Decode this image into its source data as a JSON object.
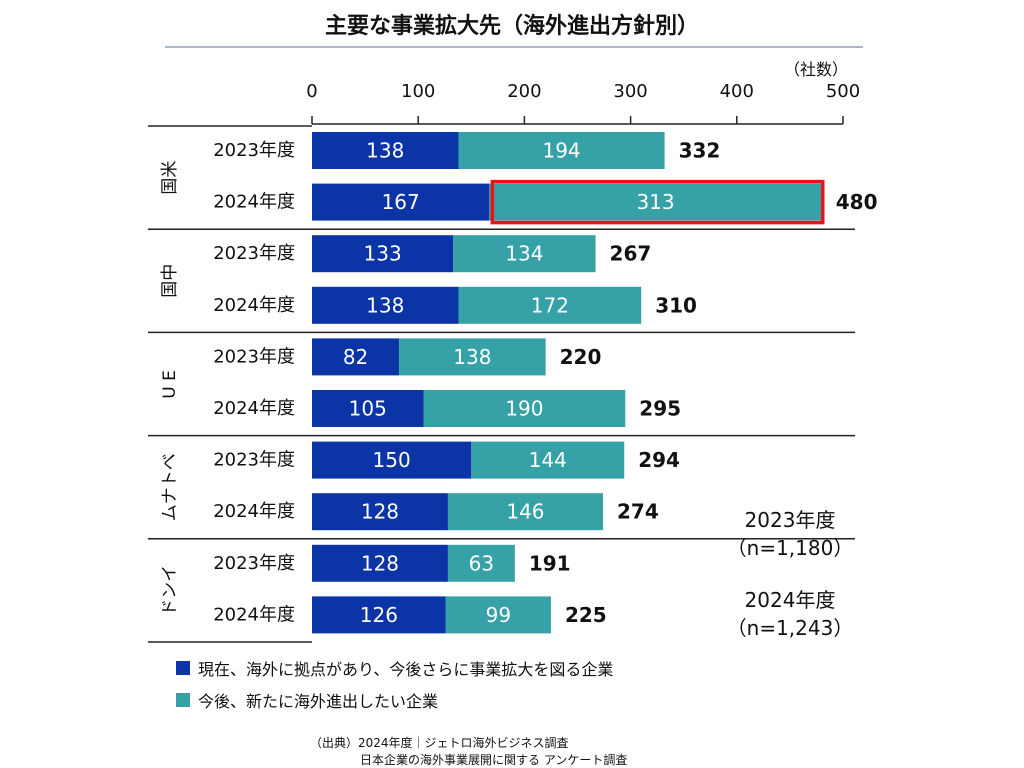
{
  "chart_data": {
    "type": "bar",
    "orientation": "horizontal",
    "stacked": true,
    "title": "主要な事業拡大先（海外進出方針別）",
    "unit_label": "（社数）",
    "xlim": [
      0,
      500
    ],
    "xticks": [
      0,
      100,
      200,
      300,
      400,
      500
    ],
    "groups": [
      {
        "name": "米国",
        "rows": [
          {
            "year": "2023年度",
            "a": 138,
            "b": 194,
            "total": 332
          },
          {
            "year": "2024年度",
            "a": 167,
            "b": 313,
            "total": 480,
            "highlight_b": true
          }
        ]
      },
      {
        "name": "中国",
        "rows": [
          {
            "year": "2023年度",
            "a": 133,
            "b": 134,
            "total": 267
          },
          {
            "year": "2024年度",
            "a": 138,
            "b": 172,
            "total": 310
          }
        ]
      },
      {
        "name": "EU",
        "rows": [
          {
            "year": "2023年度",
            "a": 82,
            "b": 138,
            "total": 220
          },
          {
            "year": "2024年度",
            "a": 105,
            "b": 190,
            "total": 295
          }
        ]
      },
      {
        "name": "ベトナム",
        "rows": [
          {
            "year": "2023年度",
            "a": 150,
            "b": 144,
            "total": 294
          },
          {
            "year": "2024年度",
            "a": 128,
            "b": 146,
            "total": 274
          }
        ]
      },
      {
        "name": "インド",
        "rows": [
          {
            "year": "2023年度",
            "a": 128,
            "b": 63,
            "total": 191
          },
          {
            "year": "2024年度",
            "a": 126,
            "b": 99,
            "total": 225
          }
        ]
      }
    ],
    "series": [
      {
        "key": "a",
        "name": "現在、海外に拠点があり、今後さらに事業拡大を図る企業",
        "color": "#0b35a6"
      },
      {
        "key": "b",
        "name": "今後、新たに海外進出したい企業",
        "color": "#36a1a7"
      }
    ],
    "highlight_color": "#e8141b",
    "sample_sizes": [
      {
        "year": "2023年度",
        "n": "（n=1,180）"
      },
      {
        "year": "2024年度",
        "n": "（n=1,243）"
      }
    ],
    "source": [
      "（出典）2024年度｜ジェトロ海外ビジネス調査",
      "日本企業の海外事業展開に関する アンケート調査"
    ]
  }
}
